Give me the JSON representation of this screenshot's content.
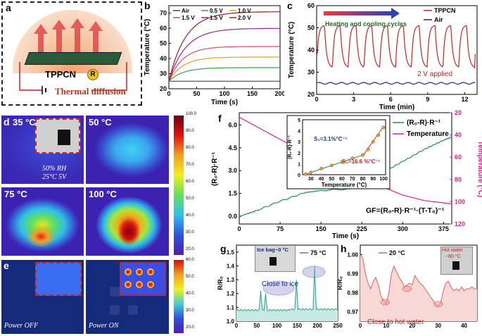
{
  "panels": {
    "a": {
      "label": "a",
      "material": "TPPCN",
      "badge": "R",
      "caption": "Thermal diffusion"
    },
    "b": {
      "label": "b"
    },
    "c": {
      "label": "c"
    },
    "d": {
      "label": "d",
      "temps": [
        "35 °C",
        "50 °C",
        "75 °C",
        "100 °C"
      ],
      "cond1": "50% RH",
      "cond2": "25°C 5V",
      "scale": [
        "100.0",
        "90.0",
        "80.0",
        "70.0",
        "60.0",
        "50.0",
        "40.0",
        "30.0",
        "20.0"
      ]
    },
    "e": {
      "label": "e",
      "off": "Power OFF",
      "on": "Power ON",
      "scale": [
        "60.0",
        "50.0",
        "40.0",
        "30.0",
        "20.0"
      ]
    },
    "f": {
      "label": "f",
      "formula": "GF=(R₀-R)·R⁻¹·(T-T₀)⁻¹"
    },
    "g": {
      "label": "g",
      "ice": "Ice bag~0 °C",
      "near": "Close to ice"
    },
    "h": {
      "label": "h",
      "hot": "Hot water",
      "hot2": "~80 °C",
      "near": "Close to hot water"
    }
  },
  "chart_data": [
    {
      "id": "b",
      "type": "line",
      "xlabel": "Time (s)",
      "ylabel": "Temperature (°C)",
      "xlim": [
        0,
        200
      ],
      "ylim": [
        20,
        75
      ],
      "xticks": [
        0,
        50,
        100,
        150,
        200
      ],
      "yticks": [
        20,
        30,
        40,
        50,
        60,
        70
      ],
      "legend": [
        "Air",
        "0.5 V",
        "1.0 V",
        "1.5 V",
        "1.5 V",
        "2.0 V"
      ],
      "series": [
        {
          "name": "Air",
          "color": "#3a3aa8",
          "start": 25,
          "plateau": 25,
          "tau": 20
        },
        {
          "name": "0.5 V",
          "color": "#3aa04a",
          "start": 25,
          "plateau": 34,
          "tau": 25
        },
        {
          "name": "1.0 V",
          "color": "#e0a020",
          "start": 25,
          "plateau": 41,
          "tau": 25
        },
        {
          "name": "1.5 V",
          "color": "#e04868",
          "start": 25,
          "plateau": 48,
          "tau": 25
        },
        {
          "name": "1.5 V",
          "color": "#8a2a9a",
          "start": 25,
          "plateau": 60,
          "tau": 30
        },
        {
          "name": "2.0 V",
          "color": "#9a2020",
          "start": 25,
          "plateau": 71,
          "tau": 30
        }
      ]
    },
    {
      "id": "c",
      "type": "line",
      "xlabel": "Time (min)",
      "ylabel": "Temperature (°C)",
      "xlim": [
        0,
        13
      ],
      "ylim": [
        20,
        60
      ],
      "xticks": [
        0,
        3,
        6,
        9,
        12
      ],
      "yticks": [
        20,
        30,
        40,
        50,
        60
      ],
      "annotation": "Heating and cooling cycles",
      "note": "2 V applied",
      "series": [
        {
          "name": "TPPCN",
          "color": "#d02020",
          "cycles": 10,
          "min": 32,
          "max": 51
        },
        {
          "name": "Air",
          "color": "#2020a0",
          "level": 25
        }
      ]
    },
    {
      "id": "f",
      "type": "line",
      "xlabel": "Time (s)",
      "ylabel": "(R₀-R)·R⁻¹",
      "y2label": "Temperature (°C)",
      "xlim": [
        0,
        390
      ],
      "ylim": [
        -0.5,
        6.8
      ],
      "y2lim": [
        20,
        120
      ],
      "xticks": [
        0,
        75,
        150,
        225,
        300,
        375
      ],
      "yticks": [
        0.0,
        1.5,
        3.0,
        4.5,
        6.0
      ],
      "y2ticks": [
        20,
        40,
        60,
        80,
        100,
        120
      ],
      "legend": [
        "(R₀-R)·R⁻¹",
        "Temperature"
      ],
      "series": [
        {
          "name": "(R₀-R)·R⁻¹",
          "color": "#2a8a5a",
          "x": [
            0,
            30,
            75,
            120,
            150,
            200,
            225,
            260,
            300,
            340,
            375,
            390
          ],
          "y": [
            0.0,
            0.35,
            1.0,
            1.55,
            1.7,
            1.8,
            2.05,
            2.8,
            3.6,
            4.4,
            5.0,
            5.2
          ]
        },
        {
          "name": "Temperature",
          "color": "#e0208a",
          "x": [
            0,
            30,
            75,
            120,
            150,
            200,
            225,
            260,
            300,
            340,
            375,
            390
          ],
          "y": [
            24,
            32,
            44,
            56,
            63,
            72,
            78,
            86,
            94,
            99,
            101,
            102
          ]
        }
      ],
      "inset": {
        "xlabel": "Temperature (°C)",
        "ylabel": "(R₀-R)·R⁻¹",
        "xlim": [
          22,
          102
        ],
        "ylim": [
          0,
          5
        ],
        "xticks": [
          30,
          40,
          50,
          60,
          70,
          80,
          90,
          100
        ],
        "yticks": [
          0,
          1,
          2,
          3,
          4,
          5
        ],
        "s1": "S₁=3.1%°C⁻¹",
        "s2": "S₂=16.6 %°C⁻¹",
        "points": [
          [
            25,
            0.05
          ],
          [
            30,
            0.2
          ],
          [
            40,
            0.55
          ],
          [
            50,
            0.85
          ],
          [
            60,
            1.15
          ],
          [
            70,
            1.5
          ],
          [
            80,
            1.8
          ],
          [
            85,
            2.3
          ],
          [
            90,
            3.0
          ],
          [
            95,
            3.6
          ],
          [
            100,
            4.3
          ]
        ]
      }
    },
    {
      "id": "g",
      "type": "line",
      "xlabel": "",
      "ylabel": "R/R₀",
      "legend": [
        "75 °C"
      ],
      "xlim": [
        0,
        250
      ],
      "ylim": [
        1.0,
        1.55
      ],
      "xticks": [
        0,
        50,
        100,
        150,
        200,
        250
      ],
      "yticks": [
        1.0,
        1.1,
        1.2,
        1.3,
        1.4,
        1.5
      ],
      "series": [
        {
          "name": "75 °C",
          "color": "#2aa090",
          "baseline": 1.08,
          "spikes": [
            [
              60,
              1.22
            ],
            [
              72,
              1.2
            ],
            [
              148,
              1.3
            ],
            [
              193,
              1.4
            ]
          ]
        }
      ]
    },
    {
      "id": "h",
      "type": "area",
      "xlabel": "",
      "ylabel": "R/R₀",
      "legend": [
        "20 °C"
      ],
      "xlim": [
        0,
        45
      ],
      "ylim": [
        0.965,
        1.005
      ],
      "xticks": [
        0,
        10,
        20,
        30,
        40
      ],
      "yticks": [
        0.97,
        0.98,
        0.99,
        1.0
      ],
      "series": [
        {
          "name": "20 °C",
          "color": "#e06060",
          "x": [
            0,
            1,
            2,
            3,
            4,
            5,
            6,
            7,
            8,
            9,
            10,
            11,
            12,
            13,
            14,
            15,
            16,
            17,
            18,
            19,
            20,
            21,
            22,
            23,
            24,
            25,
            26,
            27,
            28,
            29,
            30,
            31,
            32,
            33,
            34,
            35,
            36,
            37,
            38,
            39,
            40,
            41,
            42,
            43,
            44,
            45
          ],
          "y": [
            1.0,
            0.998,
            0.99,
            0.985,
            0.982,
            0.986,
            0.988,
            0.984,
            0.978,
            0.976,
            0.974,
            0.98,
            0.99,
            0.994,
            0.991,
            0.988,
            0.986,
            0.983,
            0.984,
            0.985,
            0.984,
            0.989,
            0.987,
            0.985,
            0.984,
            0.982,
            0.98,
            0.978,
            0.976,
            0.974,
            0.973,
            0.975,
            0.981,
            0.985,
            0.986,
            0.983,
            0.981,
            0.982,
            0.981,
            0.983,
            0.981,
            0.982,
            0.982,
            0.983,
            0.982,
            0.982
          ]
        }
      ]
    }
  ]
}
